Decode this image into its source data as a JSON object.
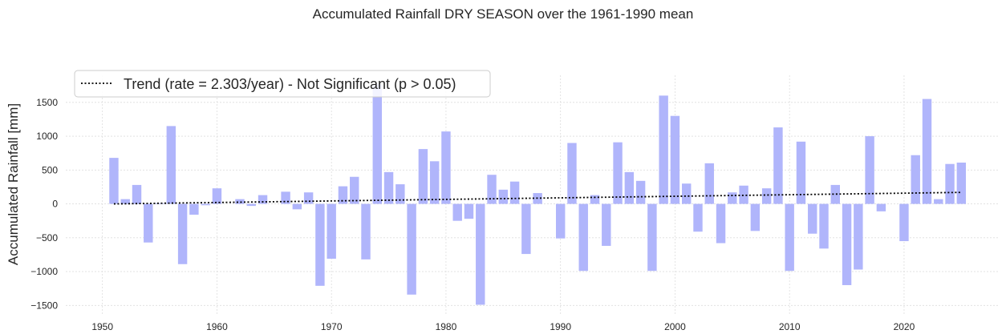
{
  "chart_data": {
    "type": "bar",
    "title": "Accumulated Rainfall DRY SEASON over the 1961-1990 mean",
    "xlabel": "",
    "ylabel": "Accumulated Rainfall [mm]",
    "xlim": [
      1946.8,
      2028.2
    ],
    "ylim": [
      -1650,
      1900
    ],
    "x_ticks": [
      1950,
      1960,
      1970,
      1980,
      1990,
      2000,
      2010,
      2020
    ],
    "y_ticks": [
      -1500,
      -1000,
      -500,
      0,
      500,
      1000,
      1500
    ],
    "grid": true,
    "bar_color": "#b0b5fb",
    "trend_color": "#000000",
    "legend_position": "upper-left",
    "years": [
      1951,
      1952,
      1953,
      1954,
      1955,
      1956,
      1957,
      1958,
      1959,
      1960,
      1961,
      1962,
      1963,
      1964,
      1965,
      1966,
      1967,
      1968,
      1969,
      1970,
      1971,
      1972,
      1973,
      1974,
      1975,
      1976,
      1977,
      1978,
      1979,
      1980,
      1981,
      1982,
      1983,
      1984,
      1985,
      1986,
      1987,
      1988,
      1989,
      1990,
      1991,
      1992,
      1993,
      1994,
      1995,
      1996,
      1997,
      1998,
      1999,
      2000,
      2001,
      2002,
      2003,
      2004,
      2005,
      2006,
      2007,
      2008,
      2009,
      2010,
      2011,
      2012,
      2013,
      2014,
      2015,
      2016,
      2017,
      2018,
      2019,
      2020,
      2021,
      2022,
      2023,
      2024,
      2025
    ],
    "values": [
      680,
      70,
      280,
      -570,
      10,
      1150,
      -890,
      -160,
      -20,
      230,
      0,
      70,
      -30,
      130,
      0,
      180,
      -80,
      170,
      -1210,
      -810,
      260,
      400,
      -820,
      1770,
      470,
      290,
      -1340,
      810,
      630,
      1070,
      -250,
      -220,
      -1490,
      430,
      210,
      330,
      -740,
      160,
      0,
      -510,
      900,
      -990,
      130,
      -620,
      910,
      470,
      340,
      -990,
      1600,
      1300,
      300,
      -410,
      600,
      -580,
      170,
      270,
      -400,
      230,
      1130,
      -990,
      920,
      -440,
      -660,
      280,
      -1200,
      -970,
      1000,
      -110,
      0,
      -550,
      720,
      1550,
      70,
      590,
      610
    ],
    "series": [
      {
        "name": "Trend (rate = 2.303/year) - Not Significant (p > 0.05)",
        "type": "line",
        "style": "dotted",
        "x": [
          1951,
          2025
        ],
        "y": [
          0,
          170
        ]
      }
    ]
  }
}
